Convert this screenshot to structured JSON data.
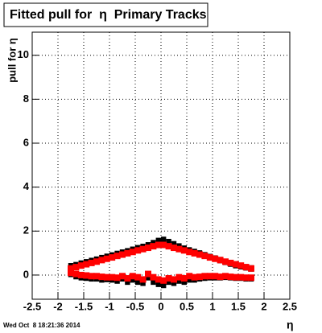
{
  "chart_data": {
    "type": "scatter",
    "title": "Fitted pull for  η  Primary Tracks",
    "xlabel": "η",
    "ylabel": "pull for η",
    "footer": "Wed Oct  8 18:21:36 2014",
    "x": [
      -1.75,
      -1.65,
      -1.55,
      -1.45,
      -1.35,
      -1.25,
      -1.15,
      -1.05,
      -0.95,
      -0.85,
      -0.75,
      -0.65,
      -0.55,
      -0.45,
      -0.35,
      -0.25,
      -0.15,
      -0.05,
      0.05,
      0.15,
      0.25,
      0.35,
      0.45,
      0.55,
      0.65,
      0.75,
      0.85,
      0.95,
      1.05,
      1.15,
      1.25,
      1.35,
      1.45,
      1.55,
      1.65,
      1.75
    ],
    "series": [
      {
        "color": "#000000",
        "marker": "step",
        "values": [
          0.4,
          0.45,
          0.52,
          0.58,
          0.64,
          0.7,
          0.77,
          0.83,
          0.89,
          0.96,
          1.02,
          1.08,
          1.15,
          1.22,
          1.28,
          1.35,
          1.45,
          1.55,
          1.6,
          1.5,
          1.4,
          1.3,
          1.2,
          1.12,
          1.05,
          0.98,
          0.9,
          0.82,
          0.75,
          0.68,
          0.6,
          0.52,
          0.45,
          0.4,
          0.35,
          0.3
        ]
      },
      {
        "color": "#000000",
        "marker": "step",
        "values": [
          0.05,
          -0.05,
          -0.1,
          -0.12,
          -0.15,
          -0.15,
          -0.2,
          -0.18,
          -0.2,
          -0.25,
          -0.15,
          -0.3,
          -0.2,
          -0.3,
          -0.35,
          -0.1,
          -0.3,
          -0.4,
          -0.45,
          -0.3,
          -0.35,
          -0.25,
          -0.3,
          -0.2,
          -0.2,
          -0.15,
          -0.12,
          -0.1,
          -0.1,
          -0.1,
          -0.08,
          -0.1,
          -0.12,
          -0.12,
          -0.15,
          -0.15
        ]
      },
      {
        "color": "#ff0000",
        "marker": "square",
        "values": [
          0.3,
          0.36,
          0.43,
          0.49,
          0.55,
          0.61,
          0.68,
          0.74,
          0.8,
          0.87,
          0.93,
          0.99,
          1.05,
          1.12,
          1.18,
          1.24,
          1.31,
          1.37,
          1.37,
          1.31,
          1.24,
          1.18,
          1.12,
          1.05,
          0.99,
          0.93,
          0.87,
          0.8,
          0.74,
          0.68,
          0.61,
          0.55,
          0.49,
          0.43,
          0.36,
          0.3
        ]
      },
      {
        "color": "#ff0000",
        "marker": "square",
        "values": [
          0.1,
          0.05,
          0.0,
          -0.02,
          -0.05,
          -0.05,
          -0.08,
          -0.1,
          -0.1,
          -0.12,
          -0.05,
          -0.15,
          -0.05,
          -0.1,
          -0.2,
          0.05,
          -0.1,
          -0.2,
          -0.25,
          -0.15,
          -0.2,
          -0.1,
          -0.15,
          -0.05,
          -0.1,
          -0.08,
          -0.05,
          -0.05,
          -0.05,
          -0.08,
          -0.05,
          -0.08,
          -0.1,
          -0.1,
          -0.12,
          -0.12
        ]
      }
    ],
    "xlim": [
      -2.5,
      2.5
    ],
    "xticks": [
      -2.5,
      -2,
      -1.5,
      -1,
      -0.5,
      0,
      0.5,
      1,
      1.5,
      2,
      2.5
    ],
    "ylim": [
      -1.1,
      11.05
    ],
    "yticks": [
      0,
      2,
      4,
      6,
      8,
      10
    ],
    "grid": true
  }
}
